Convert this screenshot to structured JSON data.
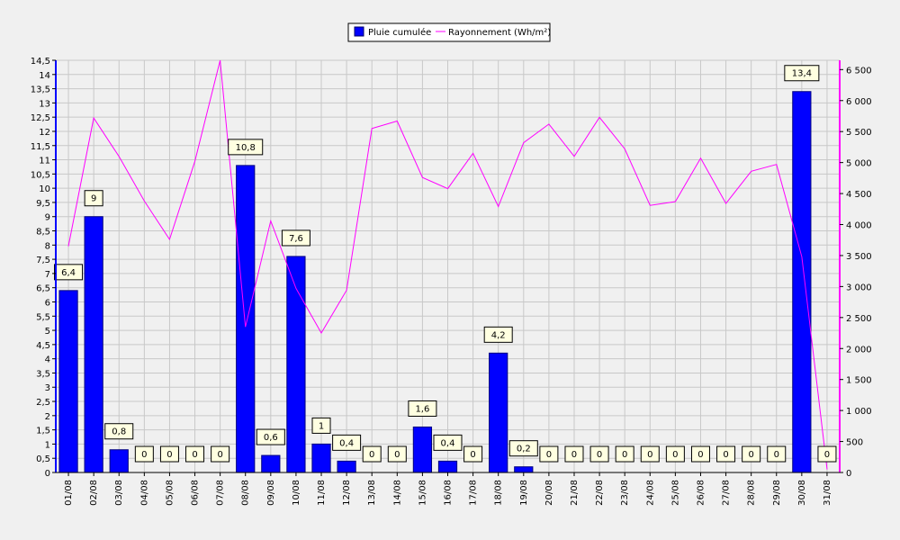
{
  "chart_data": {
    "type": "bar",
    "categories": [
      "01/08",
      "02/08",
      "03/08",
      "04/08",
      "05/08",
      "06/08",
      "07/08",
      "08/08",
      "09/08",
      "10/08",
      "11/08",
      "12/08",
      "13/08",
      "14/08",
      "15/08",
      "16/08",
      "17/08",
      "18/08",
      "19/08",
      "20/08",
      "21/08",
      "22/08",
      "23/08",
      "24/08",
      "25/08",
      "26/08",
      "27/08",
      "28/08",
      "29/08",
      "30/08",
      "31/08"
    ],
    "series": [
      {
        "name": "Pluie cumulée",
        "type": "bar",
        "axis": "left",
        "color": "#0000ff",
        "values": [
          6.4,
          9,
          0.8,
          0,
          0,
          0,
          0,
          10.8,
          0.6,
          7.6,
          1,
          0.4,
          0,
          0,
          1.6,
          0.4,
          0,
          4.2,
          0.2,
          0,
          0,
          0,
          0,
          0,
          0,
          0,
          0,
          0,
          0,
          13.4,
          0
        ],
        "data_labels": [
          "6,4",
          "9",
          "0,8",
          "0",
          "0",
          "0",
          "0",
          "10,8",
          "0,6",
          "7,6",
          "1",
          "0,4",
          "0",
          "0",
          "1,6",
          "0,4",
          "0",
          "4,2",
          "0,2",
          "0",
          "0",
          "0",
          "0",
          "0",
          "0",
          "0",
          "0",
          "0",
          "0",
          "13,4",
          "0"
        ]
      },
      {
        "name": "Rayonnement (Wh/m²)",
        "type": "line",
        "axis": "right",
        "color": "#ff00ff",
        "values": [
          3650,
          5720,
          5100,
          4380,
          3760,
          5020,
          6650,
          2350,
          4060,
          2970,
          2250,
          2940,
          5550,
          5670,
          4760,
          4580,
          5150,
          4290,
          5320,
          5620,
          5100,
          5730,
          5220,
          4310,
          4370,
          5070,
          4340,
          4860,
          4970,
          3480,
          50
        ]
      }
    ],
    "y_left": {
      "min": 0,
      "max": 14.5,
      "step": 0.5,
      "tick_labels": [
        "0",
        "0,5",
        "1",
        "1,5",
        "2",
        "2,5",
        "3",
        "3,5",
        "4",
        "4,5",
        "5",
        "5,5",
        "6",
        "6,5",
        "7",
        "7,5",
        "8",
        "8,5",
        "9",
        "9,5",
        "10",
        "10,5",
        "11",
        "11,5",
        "12",
        "12,5",
        "13",
        "13,5",
        "14",
        "14,5"
      ]
    },
    "y_right": {
      "min": 0,
      "max": 6650,
      "step": 500,
      "tick_labels": [
        "0",
        "500",
        "1 000",
        "1 500",
        "2 000",
        "2 500",
        "3 000",
        "3 500",
        "4 000",
        "4 500",
        "5 000",
        "5 500",
        "6 000",
        "6 500"
      ]
    },
    "grid": true,
    "legend_position": "top-center"
  }
}
